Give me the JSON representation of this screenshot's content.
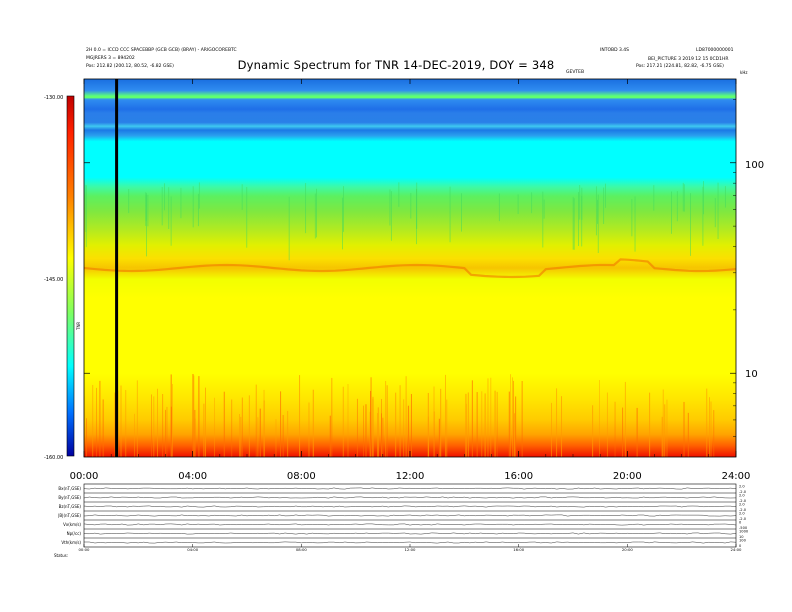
{
  "header": {
    "title": "Dynamic Spectrum for TNR 14-DEC-2019, DOY = 348",
    "left_line1": "2H 0.0 = ICCD CCC SPACEBBP (GCB GCB) (BRAY) - ARIGOCOREBTC",
    "left_line2": "MGJRERS 3 = 894202",
    "left_line3": "Pos:  212.82 (200.12, 80.52, -6.82 GSE)",
    "right_line1a": "INTOBD 3.4S",
    "right_line1b": "LD87000000001",
    "right_line2": "BEI_PICTURE 3 2019 12 15 0CD1HR",
    "right_line3": "Pos:  217.21 (224.81, 82.82, -6.75 GSE)",
    "center_small": "GEVTEB",
    "right_corner": "kHz"
  },
  "colorbar": {
    "label": "TNR",
    "ticks": [
      "-130.00",
      "-145.00",
      "-160.00"
    ],
    "colors": [
      "#c00000",
      "#ff0000",
      "#ff8000",
      "#ffff00",
      "#80ff80",
      "#00ffff",
      "#0080ff",
      "#0000a0"
    ]
  },
  "chart_data": [
    {
      "type": "heatmap",
      "title": "Dynamic Spectrum for TNR 14-DEC-2019, DOY = 348",
      "x_ticks": [
        "00:00",
        "04:00",
        "08:00",
        "12:00",
        "16:00",
        "20:00",
        "24:00"
      ],
      "x_range_hours": [
        0,
        24
      ],
      "y_scale": "log",
      "y_unit": "kHz",
      "y_ticks": [
        "100",
        "10"
      ],
      "y_range_khz": [
        4,
        250
      ],
      "color_range_db": [
        -160,
        -130
      ],
      "bands": [
        {
          "from_khz": 4,
          "to_khz": 5,
          "level": "red"
        },
        {
          "from_khz": 5,
          "to_khz": 9,
          "level": "orange-yellow"
        },
        {
          "from_khz": 9,
          "to_khz": 25,
          "level": "yellow"
        },
        {
          "from_khz": 25,
          "to_khz": 40,
          "level": "yellow-orange"
        },
        {
          "from_khz": 40,
          "to_khz": 60,
          "level": "yellow-green"
        },
        {
          "from_khz": 60,
          "to_khz": 80,
          "level": "green"
        },
        {
          "from_khz": 80,
          "to_khz": 150,
          "level": "cyan"
        },
        {
          "from_khz": 150,
          "to_khz": 250,
          "level": "blue"
        }
      ],
      "data_gap_hour": 1.2
    },
    {
      "type": "line",
      "panels": [
        {
          "label": "Bx(nT,GSE)",
          "right_ticks": [
            "2.0",
            "-2.0"
          ]
        },
        {
          "label": "By(nT,GSE)",
          "right_ticks": [
            "2.0",
            "-2.0"
          ]
        },
        {
          "label": "Bz(nT,GSE)",
          "right_ticks": [
            "2.0",
            "-2.0"
          ]
        },
        {
          "label": "|B|(nT,GSE)",
          "right_ticks": [
            "2.0",
            "-2.0"
          ]
        },
        {
          "label": "Vx(km/s)",
          "right_ticks": [
            "0",
            "-500"
          ]
        },
        {
          "label": "Np(/cc)",
          "right_ticks": [
            "1000",
            "10"
          ]
        },
        {
          "label": "Vth(km/s)",
          "right_ticks": [
            "100",
            "0"
          ]
        }
      ],
      "x_ticks": [
        "00:00",
        "04:00",
        "08:00",
        "12:00",
        "16:00",
        "20:00",
        "24:00"
      ],
      "footer_label": "Status:"
    }
  ]
}
